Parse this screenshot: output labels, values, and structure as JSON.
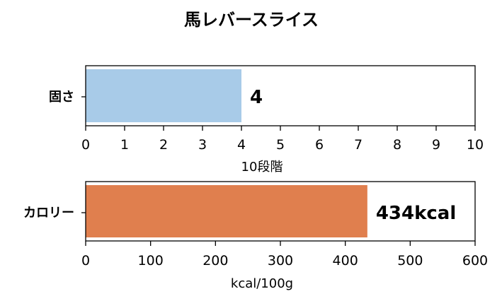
{
  "chart_data": [
    {
      "type": "bar",
      "orientation": "horizontal",
      "title": "馬レバースライス",
      "categories": [
        "固さ"
      ],
      "values": [
        4
      ],
      "data_labels": [
        "4"
      ],
      "xlabel": "10段階",
      "xlim": [
        0,
        10
      ],
      "xticks": [
        "0",
        "1",
        "2",
        "3",
        "4",
        "5",
        "6",
        "7",
        "8",
        "9",
        "10"
      ],
      "xtick_values": [
        0,
        1,
        2,
        3,
        4,
        5,
        6,
        7,
        8,
        9,
        10
      ],
      "bar_color": "#a8cbe8",
      "grid": false
    },
    {
      "type": "bar",
      "orientation": "horizontal",
      "categories": [
        "カロリー"
      ],
      "values": [
        434
      ],
      "data_labels": [
        "434kcal"
      ],
      "xlabel": "kcal/100g",
      "xlim": [
        0,
        600
      ],
      "xticks": [
        "0",
        "100",
        "200",
        "300",
        "400",
        "500",
        "600"
      ],
      "xtick_values": [
        0,
        100,
        200,
        300,
        400,
        500,
        600
      ],
      "bar_color": "#e07f4e",
      "grid": false
    }
  ]
}
